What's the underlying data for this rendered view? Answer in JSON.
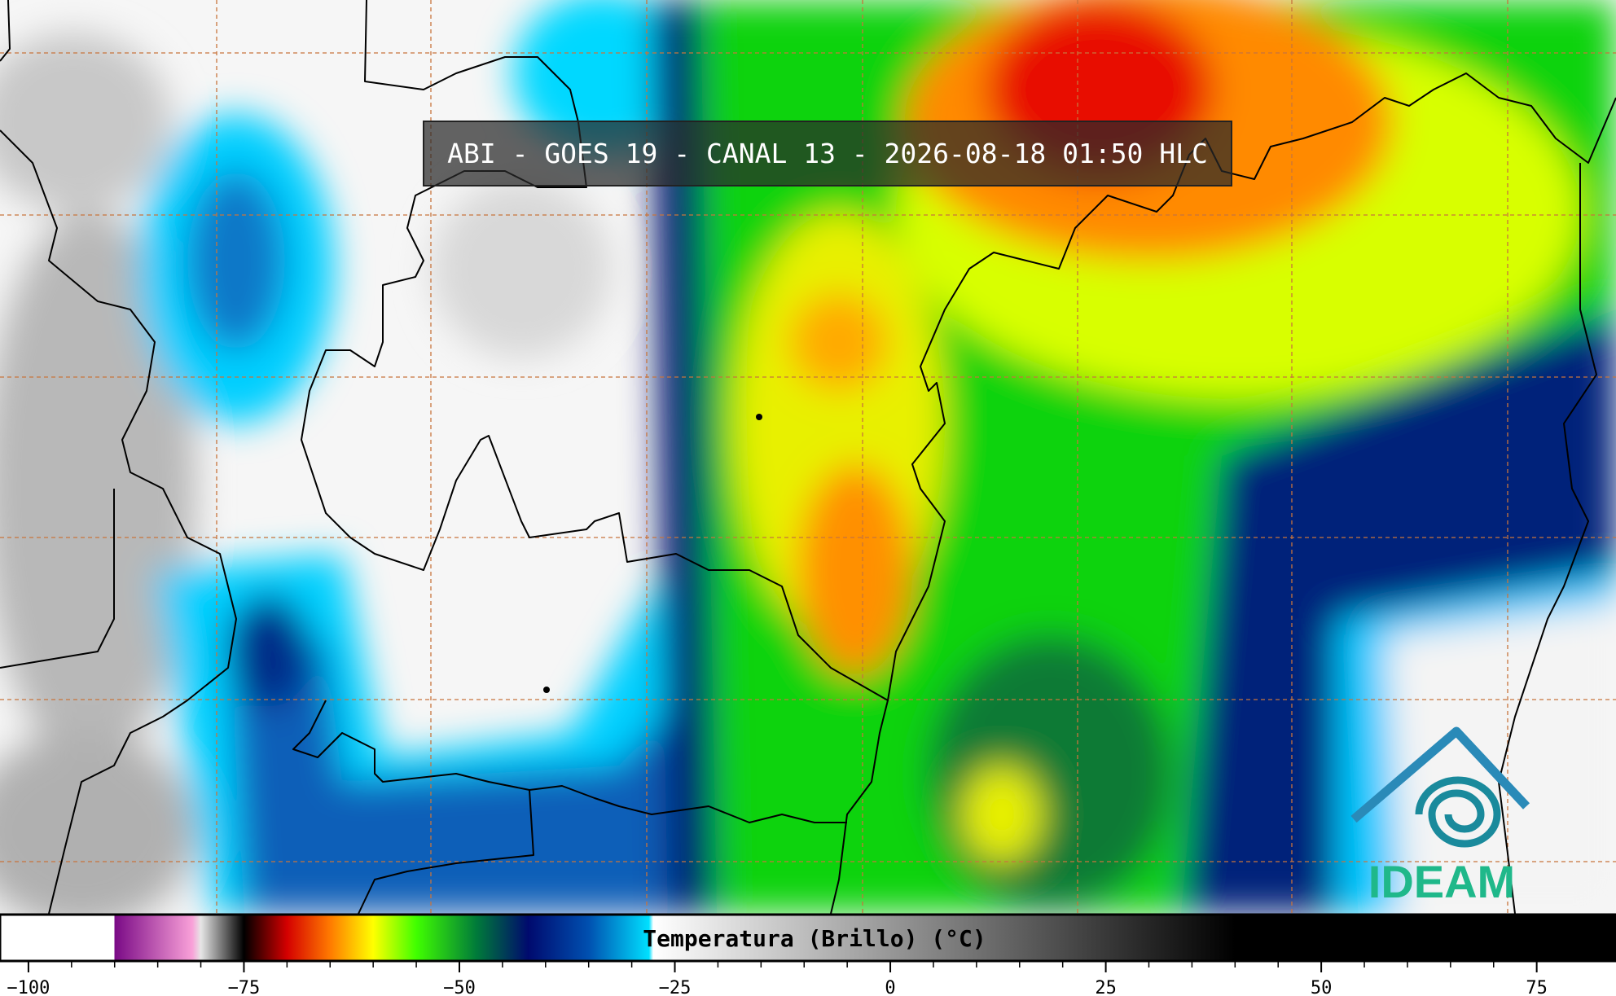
{
  "title": "ABI - GOES 19 - CANAL 13 - 2026-08-18 01:50 HLC",
  "logo": "IDEAM",
  "colorbar": {
    "label": "Temperatura (Brillo) (°C)",
    "lim": [
      -103.3,
      84.2
    ],
    "ticks": [
      {
        "value": -100,
        "label": "−100"
      },
      {
        "value": -75,
        "label": "−75"
      },
      {
        "value": -50,
        "label": "−50"
      },
      {
        "value": -25,
        "label": "−25"
      },
      0,
      25,
      50,
      75
    ],
    "colormap": [
      {
        "value": -103.3,
        "color": "#ffffff"
      },
      {
        "value": -90,
        "color": "#ffffff"
      },
      {
        "value": -90,
        "color": "#7a0a86"
      },
      {
        "value": -81,
        "color": "#f9a0d8"
      },
      {
        "value": -80,
        "color": "#e6e6e6"
      },
      {
        "value": -75,
        "color": "#000000"
      },
      {
        "value": -70,
        "color": "#d40000"
      },
      {
        "value": -65,
        "color": "#ff7a00"
      },
      {
        "value": -60,
        "color": "#ffff00"
      },
      {
        "value": -55,
        "color": "#40ff00"
      },
      {
        "value": -48,
        "color": "#007a3a"
      },
      {
        "value": -42,
        "color": "#000a6e"
      },
      {
        "value": -35,
        "color": "#0050b0"
      },
      {
        "value": -28,
        "color": "#00e0ff"
      },
      {
        "value": -27.5,
        "color": "#ffffff"
      },
      {
        "value": 40,
        "color": "#000000"
      },
      {
        "value": 84.2,
        "color": "#000000"
      }
    ]
  }
}
